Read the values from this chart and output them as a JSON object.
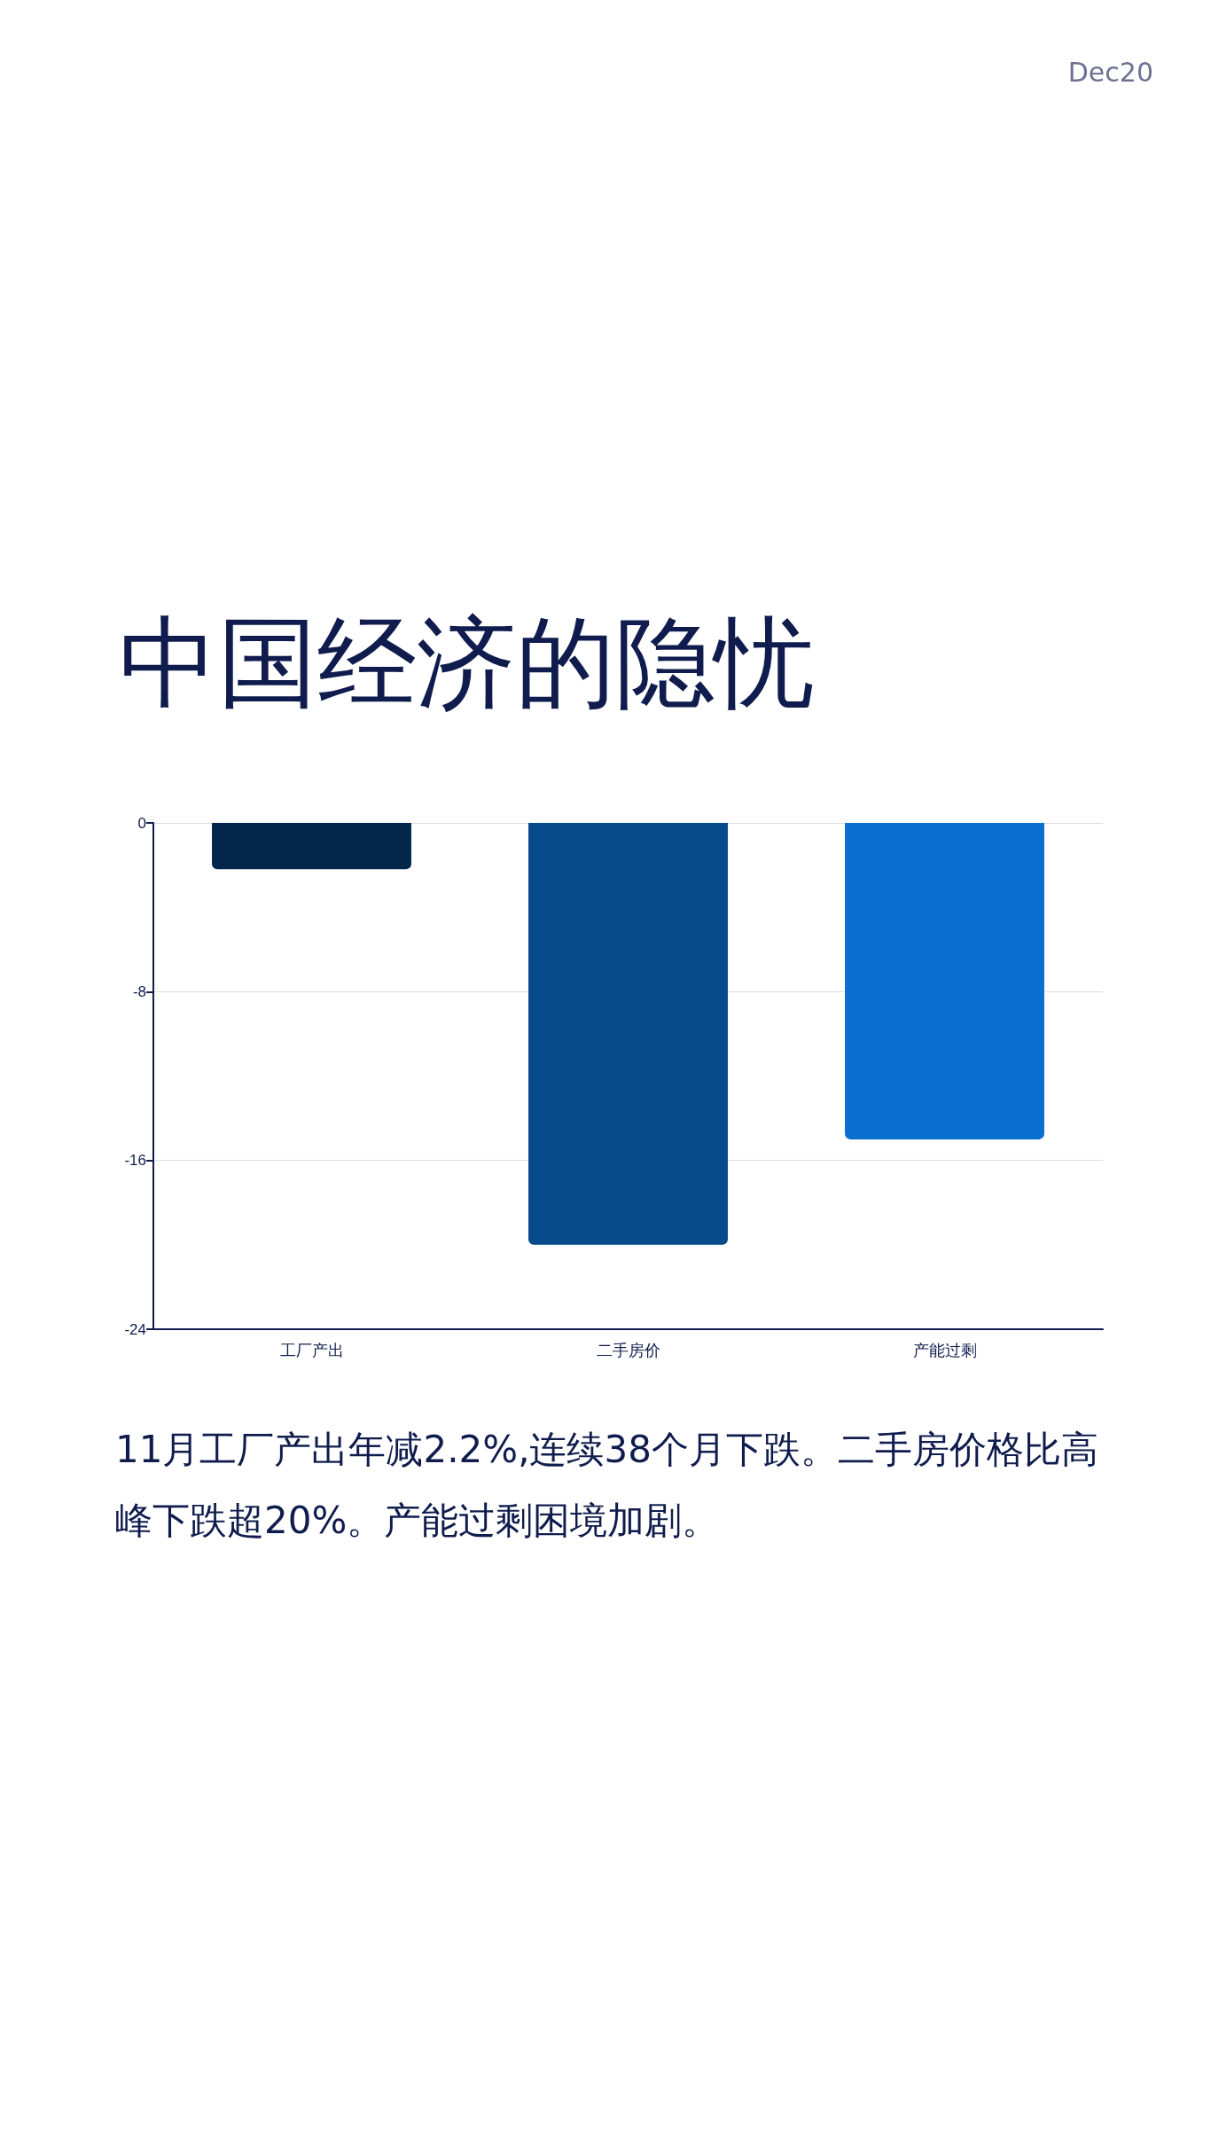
{
  "chart_data": {
    "type": "bar",
    "title": "中国经济的隐忧",
    "categories": [
      "工厂产出",
      "二手房价",
      "产能过剩"
    ],
    "values": [
      -2.2,
      -20,
      -15
    ],
    "colors": [
      "#04264b",
      "#064a8c",
      "#0a70cf"
    ],
    "ylim": [
      -24,
      0
    ],
    "yticks": [
      0,
      -8,
      -16,
      -24
    ],
    "grid": "y",
    "annotations": [
      "Dec20",
      "11月工厂产出年减2.2%,连续38个月下跌。二手房价格比高峰下跌超20%。产能过剩困境加剧。"
    ]
  }
}
